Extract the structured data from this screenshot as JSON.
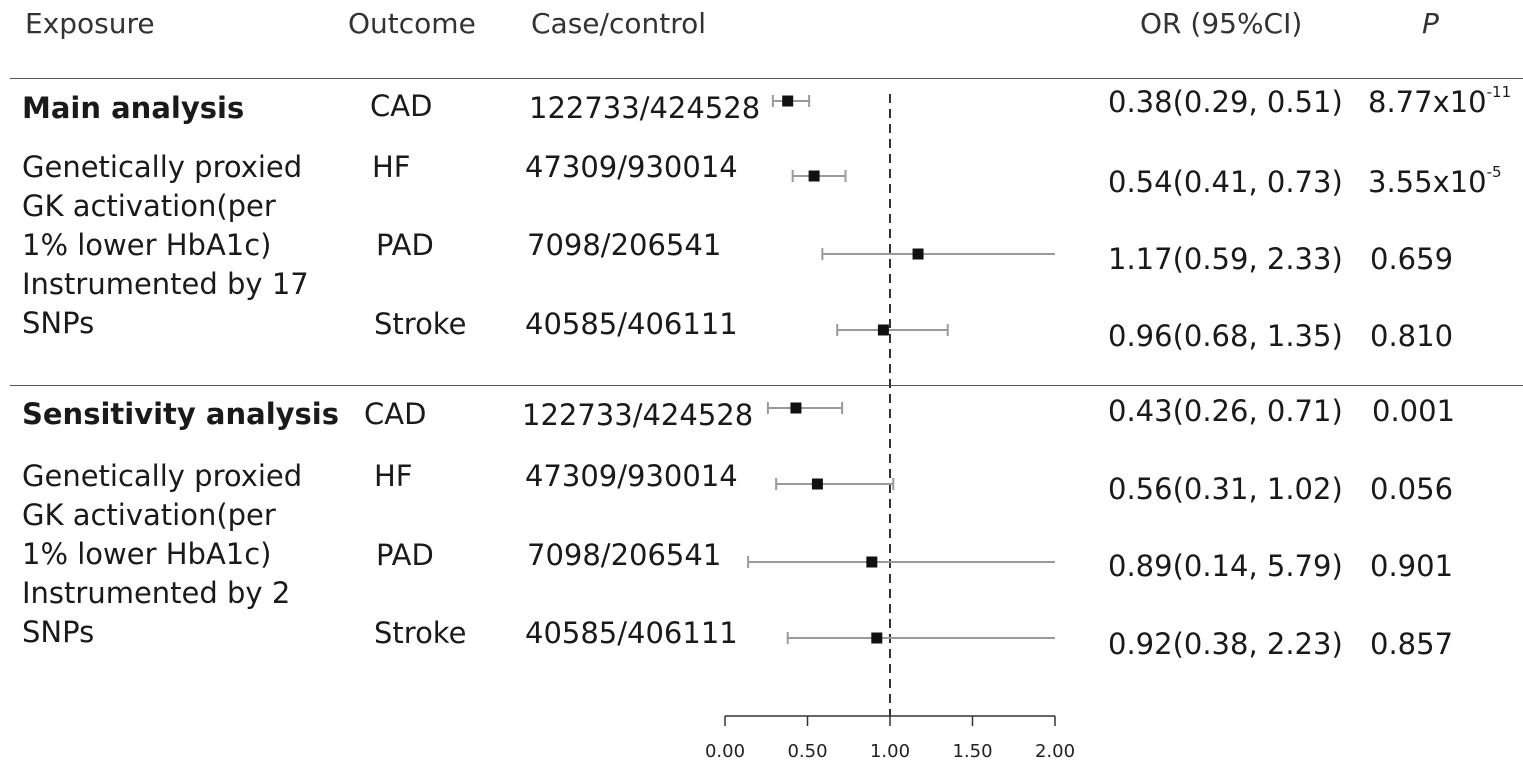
{
  "headers": {
    "exposure": "Exposure",
    "outcome": "Outcome",
    "case_control": "Case/control",
    "or_ci": "OR (95%CI)",
    "p": "P"
  },
  "groups": [
    {
      "title": "Main analysis",
      "description": [
        "Genetically proxied",
        "GK activation(per",
        "1% lower HbA1c)",
        "Instrumented by 17",
        "SNPs"
      ]
    },
    {
      "title": "Sensitivity analysis",
      "description": [
        "Genetically proxied",
        "GK activation(per",
        "1% lower HbA1c)",
        "Instrumented by 2",
        "SNPs"
      ]
    }
  ],
  "rows": [
    {
      "outcome": "CAD",
      "case_control": "122733/424528",
      "or_text": "0.38(0.29, 0.51)",
      "p_base": "8.77x10",
      "p_exp": "-11"
    },
    {
      "outcome": "HF",
      "case_control": "47309/930014",
      "or_text": "0.54(0.41, 0.73)",
      "p_base": "3.55x10",
      "p_exp": "-5"
    },
    {
      "outcome": "PAD",
      "case_control": "7098/206541",
      "or_text": "1.17(0.59, 2.33)",
      "p_base": "0.659",
      "p_exp": ""
    },
    {
      "outcome": "Stroke",
      "case_control": "40585/406111",
      "or_text": "0.96(0.68, 1.35)",
      "p_base": "0.810",
      "p_exp": ""
    },
    {
      "outcome": "CAD",
      "case_control": "122733/424528",
      "or_text": "0.43(0.26, 0.71)",
      "p_base": "0.001",
      "p_exp": ""
    },
    {
      "outcome": "HF",
      "case_control": "47309/930014",
      "or_text": "0.56(0.31, 1.02)",
      "p_base": "0.056",
      "p_exp": ""
    },
    {
      "outcome": "PAD",
      "case_control": "7098/206541",
      "or_text": "0.89(0.14, 5.79)",
      "p_base": "0.901",
      "p_exp": ""
    },
    {
      "outcome": "Stroke",
      "case_control": "40585/406111",
      "or_text": "0.92(0.38, 2.23)",
      "p_base": "0.857",
      "p_exp": ""
    }
  ],
  "chart_data": {
    "type": "scatter",
    "subtype": "forest",
    "reference_line": 1.0,
    "xlim": [
      0,
      2
    ],
    "xticks": [
      "0.00",
      "0.50",
      "1.00",
      "1.50",
      "2.00"
    ],
    "series": [
      {
        "points": [
          {
            "or": 0.38,
            "lower": 0.29,
            "upper": 0.51
          },
          {
            "or": 0.54,
            "lower": 0.41,
            "upper": 0.73
          },
          {
            "or": 1.17,
            "lower": 0.59,
            "upper": 2.33
          },
          {
            "or": 0.96,
            "lower": 0.68,
            "upper": 1.35
          },
          {
            "or": 0.43,
            "lower": 0.26,
            "upper": 0.71
          },
          {
            "or": 0.56,
            "lower": 0.31,
            "upper": 1.02
          },
          {
            "or": 0.89,
            "lower": 0.14,
            "upper": 5.79
          },
          {
            "or": 0.92,
            "lower": 0.38,
            "upper": 2.23
          }
        ]
      }
    ],
    "colors": {
      "marker": "#111111",
      "ci": "#9a9a9a",
      "ref": "#333333",
      "axis": "#333333"
    }
  }
}
